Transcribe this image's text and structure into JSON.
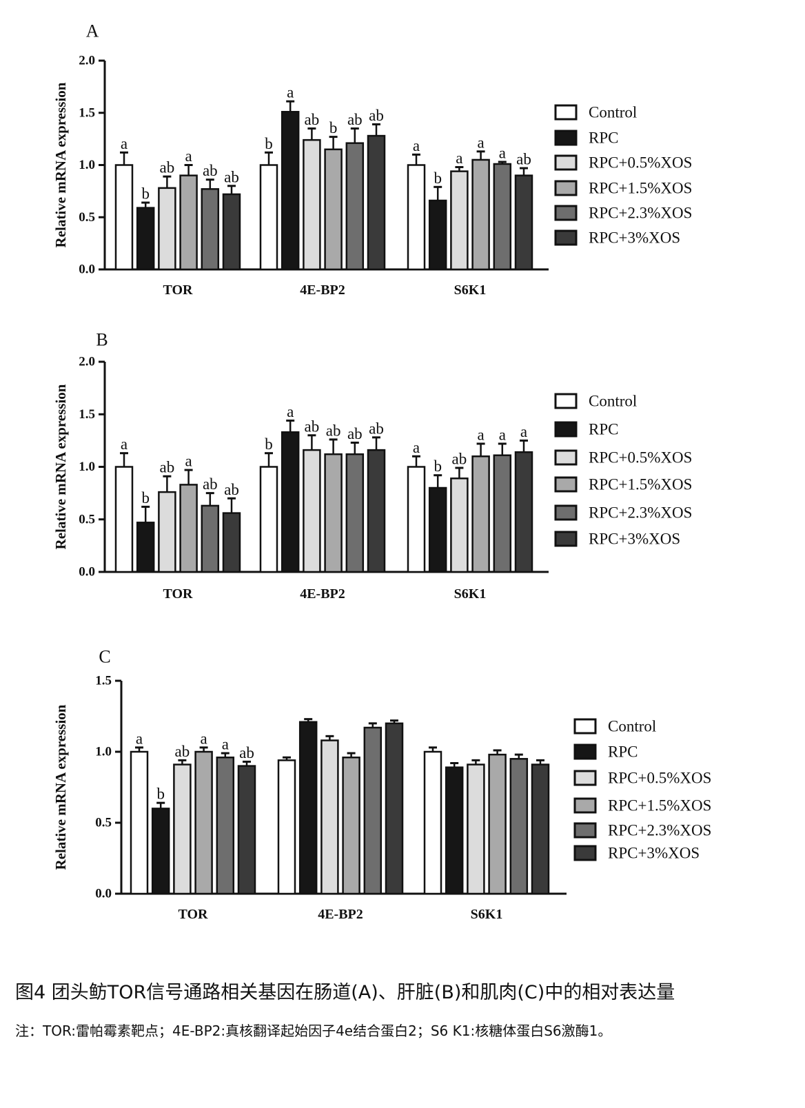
{
  "caption": {
    "title": "图4 团头鲂TOR信号通路相关基因在肠道(A)、肝脏(B)和肌肉(C)中的相对表达量",
    "note": "注：TOR:雷帕霉素靶点；4E-BP2:真核翻译起始因子4e结合蛋白2；S6 K1:核糖体蛋白S6激酶1。"
  },
  "colors": {
    "Control": "#ffffff",
    "RPC": "#161616",
    "RPC+0.5%XOS": "#dcdcdc",
    "RPC+1.5%XOS": "#a9a9a9",
    "RPC+2.3%XOS": "#6e6e6e",
    "RPC+3%XOS": "#3a3a3a"
  },
  "chart_data": [
    {
      "panel": "A",
      "type": "bar",
      "ylabel": "Relative mRNA expression",
      "ylim": [
        0,
        2.0
      ],
      "yticks": [
        "0.0",
        "0.5",
        "1.0",
        "1.5",
        "2.0"
      ],
      "categories": [
        "TOR",
        "4E-BP2",
        "S6K1"
      ],
      "series": [
        {
          "name": "Control",
          "values": [
            1.0,
            1.0,
            1.0
          ],
          "errors": [
            0.12,
            0.12,
            0.1
          ],
          "labels": [
            "a",
            "b",
            "a"
          ]
        },
        {
          "name": "RPC",
          "values": [
            0.59,
            1.51,
            0.66
          ],
          "errors": [
            0.05,
            0.1,
            0.13
          ],
          "labels": [
            "b",
            "a",
            "b"
          ]
        },
        {
          "name": "RPC+0.5%XOS",
          "values": [
            0.78,
            1.24,
            0.94
          ],
          "errors": [
            0.11,
            0.11,
            0.04
          ],
          "labels": [
            "ab",
            "ab",
            "a"
          ]
        },
        {
          "name": "RPC+1.5%XOS",
          "values": [
            0.9,
            1.15,
            1.05
          ],
          "errors": [
            0.1,
            0.12,
            0.08
          ],
          "labels": [
            "a",
            "b",
            "a"
          ]
        },
        {
          "name": "RPC+2.3%XOS",
          "values": [
            0.77,
            1.21,
            1.01
          ],
          "errors": [
            0.09,
            0.14,
            0.02
          ],
          "labels": [
            "ab",
            "ab",
            "a"
          ]
        },
        {
          "name": "RPC+3%XOS",
          "values": [
            0.72,
            1.28,
            0.9
          ],
          "errors": [
            0.08,
            0.11,
            0.07
          ],
          "labels": [
            "ab",
            "ab",
            "ab"
          ]
        }
      ],
      "legend": "right"
    },
    {
      "panel": "B",
      "type": "bar",
      "ylabel": "Relative mRNA expression",
      "ylim": [
        0,
        2.0
      ],
      "yticks": [
        "0.0",
        "0.5",
        "1.0",
        "1.5",
        "2.0"
      ],
      "categories": [
        "TOR",
        "4E-BP2",
        "S6K1"
      ],
      "series": [
        {
          "name": "Control",
          "values": [
            1.0,
            1.0,
            1.0
          ],
          "errors": [
            0.13,
            0.13,
            0.1
          ],
          "labels": [
            "a",
            "b",
            "a"
          ]
        },
        {
          "name": "RPC",
          "values": [
            0.47,
            1.33,
            0.8
          ],
          "errors": [
            0.15,
            0.11,
            0.12
          ],
          "labels": [
            "b",
            "a",
            "b"
          ]
        },
        {
          "name": "RPC+0.5%XOS",
          "values": [
            0.76,
            1.16,
            0.89
          ],
          "errors": [
            0.15,
            0.14,
            0.1
          ],
          "labels": [
            "ab",
            "ab",
            "ab"
          ]
        },
        {
          "name": "RPC+1.5%XOS",
          "values": [
            0.83,
            1.12,
            1.1
          ],
          "errors": [
            0.14,
            0.14,
            0.12
          ],
          "labels": [
            "a",
            "ab",
            "a"
          ]
        },
        {
          "name": "RPC+2.3%XOS",
          "values": [
            0.63,
            1.12,
            1.11
          ],
          "errors": [
            0.12,
            0.11,
            0.11
          ],
          "labels": [
            "ab",
            "ab",
            "a"
          ]
        },
        {
          "name": "RPC+3%XOS",
          "values": [
            0.56,
            1.16,
            1.14
          ],
          "errors": [
            0.14,
            0.12,
            0.11
          ],
          "labels": [
            "ab",
            "ab",
            "a"
          ]
        }
      ],
      "legend": "right"
    },
    {
      "panel": "C",
      "type": "bar",
      "ylabel": "Relative mRNA expression",
      "ylim": [
        0,
        1.5
      ],
      "yticks": [
        "0.0",
        "0.5",
        "1.0",
        "1.5"
      ],
      "categories": [
        "TOR",
        "4E-BP2",
        "S6K1"
      ],
      "series": [
        {
          "name": "Control",
          "values": [
            1.0,
            0.94,
            1.0
          ],
          "errors": [
            0.03,
            0.02,
            0.03
          ],
          "labels": [
            "a",
            "",
            ""
          ]
        },
        {
          "name": "RPC",
          "values": [
            0.6,
            1.21,
            0.89
          ],
          "errors": [
            0.04,
            0.02,
            0.03
          ],
          "labels": [
            "b",
            "",
            ""
          ]
        },
        {
          "name": "RPC+0.5%XOS",
          "values": [
            0.91,
            1.08,
            0.91
          ],
          "errors": [
            0.03,
            0.03,
            0.03
          ],
          "labels": [
            "ab",
            "",
            ""
          ]
        },
        {
          "name": "RPC+1.5%XOS",
          "values": [
            1.0,
            0.96,
            0.98
          ],
          "errors": [
            0.03,
            0.03,
            0.03
          ],
          "labels": [
            "a",
            "",
            ""
          ]
        },
        {
          "name": "RPC+2.3%XOS",
          "values": [
            0.96,
            1.17,
            0.95
          ],
          "errors": [
            0.03,
            0.03,
            0.03
          ],
          "labels": [
            "a",
            "",
            ""
          ]
        },
        {
          "name": "RPC+3%XOS",
          "values": [
            0.9,
            1.2,
            0.91
          ],
          "errors": [
            0.03,
            0.02,
            0.03
          ],
          "labels": [
            "ab",
            "",
            ""
          ]
        }
      ],
      "legend": "right"
    }
  ]
}
